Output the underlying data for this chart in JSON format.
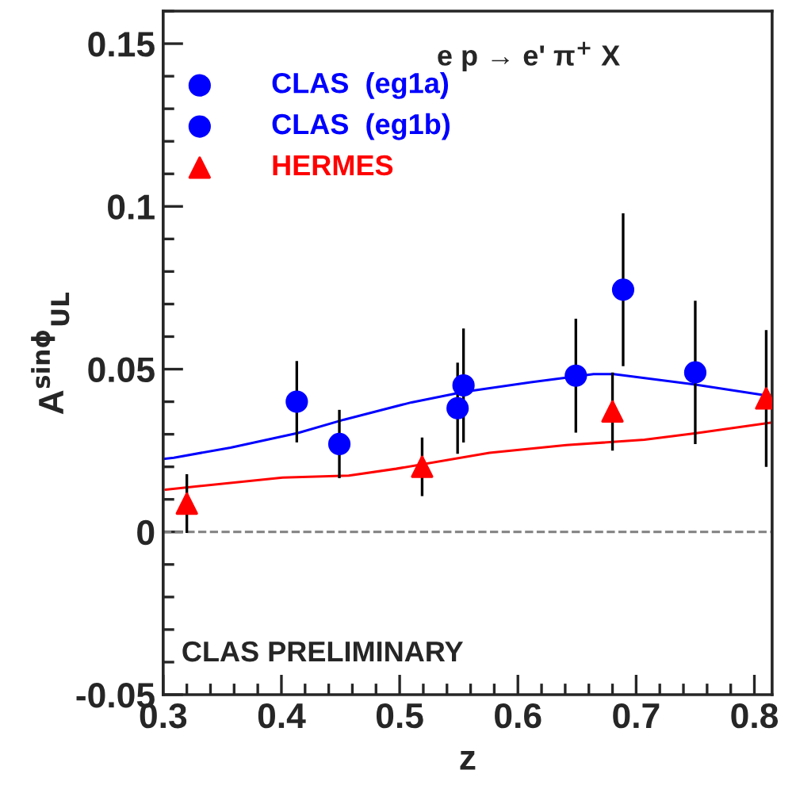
{
  "chart_data": {
    "type": "scatter",
    "title": "e p → e' π$^{+}$ X",
    "xlabel": "z",
    "ylabel": "A$^{sinϕ}$$_{UL}$",
    "annotations": [
      "CLAS PRELIMINARY"
    ],
    "xlim": [
      0.3,
      0.815
    ],
    "xticks": [
      0.3,
      0.4,
      0.5,
      0.6,
      0.7,
      0.8
    ],
    "ylim": [
      -0.05,
      0.16
    ],
    "yticks": [
      -0.05,
      0,
      0.05,
      0.1,
      0.15
    ],
    "grid": false,
    "legend": "top left",
    "ref_lines": [
      {
        "axis": "y",
        "value": 0,
        "color": "#808080",
        "line_style": "dashed"
      }
    ],
    "series": [
      {
        "name": "CLAS  (eg1a)",
        "marker": "circle",
        "color": "#0000ff",
        "x": [
          0.413,
          0.554,
          0.689
        ],
        "values": [
          0.04,
          0.045,
          0.0744
        ],
        "errors": [
          0.0125,
          0.0175,
          0.0235
        ]
      },
      {
        "name": "CLAS  (eg1b)",
        "marker": "circle",
        "color": "#0000ff",
        "x": [
          0.449,
          0.549,
          0.649,
          0.75
        ],
        "values": [
          0.027,
          0.038,
          0.048,
          0.049
        ],
        "errors": [
          0.0105,
          0.014,
          0.0175,
          0.022
        ]
      },
      {
        "name": "HERMES",
        "marker": "triangle",
        "color": "#ff0000",
        "x": [
          0.32,
          0.519,
          0.68,
          0.81
        ],
        "values": [
          0.0087,
          0.02,
          0.037,
          0.041
        ],
        "errors": [
          0.009,
          0.009,
          0.012,
          0.021
        ]
      },
      {
        "type": "line",
        "color": "#0000ff",
        "x": [
          0.3,
          0.309,
          0.357,
          0.414,
          0.453,
          0.51,
          0.554,
          0.611,
          0.664,
          0.681,
          0.749,
          0.808
        ],
        "values": [
          0.0224,
          0.0228,
          0.0259,
          0.0304,
          0.0345,
          0.0398,
          0.043,
          0.046,
          0.0485,
          0.0485,
          0.0453,
          0.042
        ]
      },
      {
        "type": "line",
        "color": "#ff0000",
        "x": [
          0.302,
          0.401,
          0.457,
          0.497,
          0.576,
          0.641,
          0.707,
          0.752,
          0.815
        ],
        "values": [
          0.013,
          0.0167,
          0.0173,
          0.0194,
          0.0243,
          0.0267,
          0.0283,
          0.0304,
          0.0336
        ]
      }
    ]
  }
}
